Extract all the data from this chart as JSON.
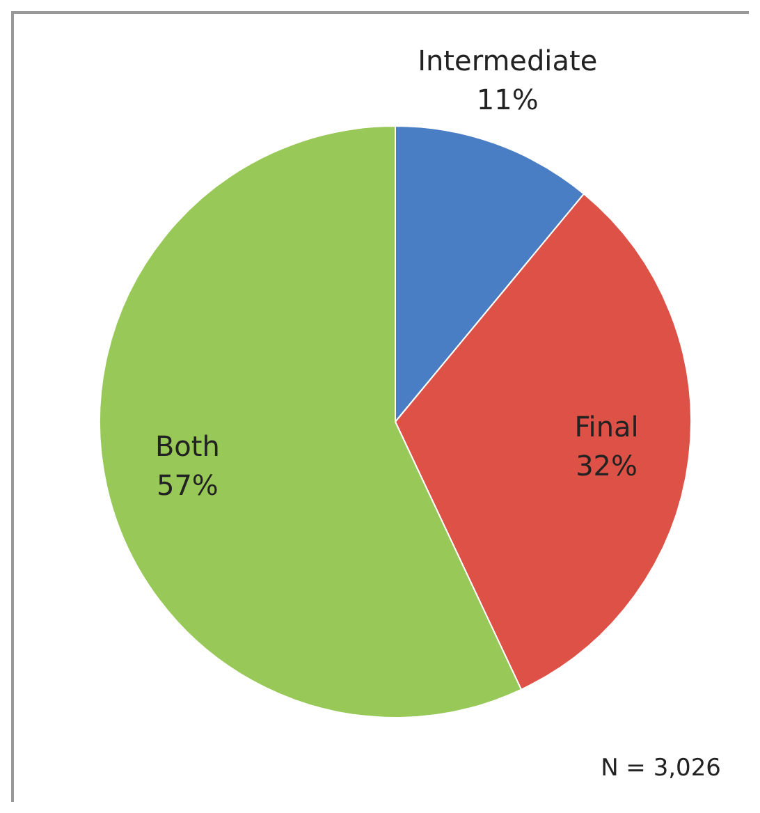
{
  "chart_data": {
    "type": "pie",
    "categories": [
      "Intermediate",
      "Final",
      "Both"
    ],
    "values": [
      11,
      32,
      57
    ],
    "colors": [
      "#4a7ec4",
      "#dd5147",
      "#98c857"
    ],
    "value_labels": [
      "11%",
      "32%",
      "57%"
    ],
    "legend": false,
    "annotations": [
      "N = 3,026"
    ]
  }
}
